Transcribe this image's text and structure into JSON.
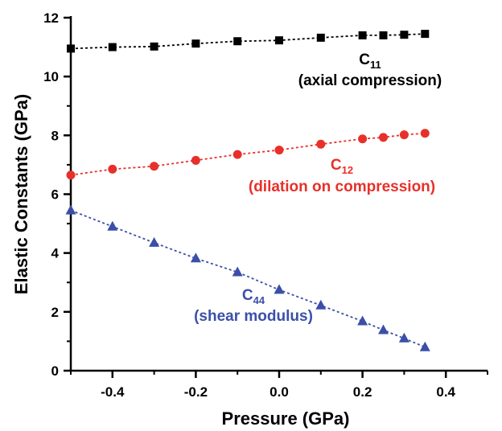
{
  "chart_data": {
    "type": "scatter",
    "xlabel": "Pressure (GPa)",
    "ylabel": "Elastic Constants (GPa)",
    "xlim": [
      -0.5,
      0.5
    ],
    "ylim": [
      0,
      12
    ],
    "xticks": [
      -0.4,
      -0.2,
      0.0,
      0.2,
      0.4
    ],
    "xtick_labels": [
      "-0.4",
      "-0.2",
      "0.0",
      "0.2",
      "0.4"
    ],
    "yticks": [
      0,
      2,
      4,
      6,
      8,
      10,
      12
    ],
    "ytick_labels": [
      "0",
      "2",
      "4",
      "6",
      "8",
      "10",
      "12"
    ],
    "grid": false,
    "legend": "none",
    "series": [
      {
        "name": "C11",
        "marker": "square",
        "color": "#000000",
        "line_style": "dotted",
        "x": [
          -0.5,
          -0.4,
          -0.3,
          -0.2,
          -0.1,
          0.0,
          0.1,
          0.2,
          0.25,
          0.3,
          0.35
        ],
        "y": [
          10.95,
          11.0,
          11.02,
          11.12,
          11.2,
          11.23,
          11.32,
          11.4,
          11.4,
          11.42,
          11.45
        ]
      },
      {
        "name": "C12",
        "marker": "circle",
        "color": "#e8302a",
        "line_style": "dotted",
        "x": [
          -0.5,
          -0.4,
          -0.3,
          -0.2,
          -0.1,
          0.0,
          0.1,
          0.2,
          0.25,
          0.3,
          0.35
        ],
        "y": [
          6.65,
          6.85,
          6.95,
          7.15,
          7.35,
          7.5,
          7.7,
          7.88,
          7.93,
          8.02,
          8.07
        ]
      },
      {
        "name": "C44",
        "marker": "triangle",
        "color": "#3b4fa8",
        "line_style": "dotted",
        "x": [
          -0.5,
          -0.4,
          -0.3,
          -0.2,
          -0.1,
          0.0,
          0.1,
          0.2,
          0.25,
          0.3,
          0.35
        ],
        "y": [
          5.45,
          4.9,
          4.35,
          3.82,
          3.35,
          2.75,
          2.22,
          1.68,
          1.38,
          1.1,
          0.8
        ]
      }
    ],
    "annotations": [
      {
        "label": "C",
        "sub": "11",
        "text": "(axial compression)",
        "color": "#000000"
      },
      {
        "label": "C",
        "sub": "12",
        "text": "(dilation on compression)",
        "color": "#e8302a"
      },
      {
        "label": "C",
        "sub": "44",
        "text": "(shear modulus)",
        "color": "#3b4fa8"
      }
    ]
  }
}
